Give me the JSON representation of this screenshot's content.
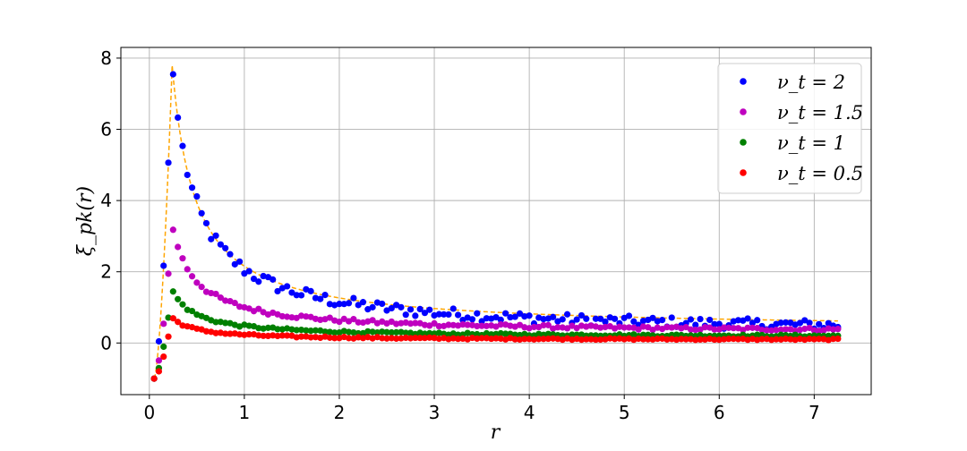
{
  "chart_data": {
    "type": "scatter",
    "title": "",
    "xlabel": "r",
    "ylabel": "ξ_pk(r)",
    "xlim": [
      -0.3,
      7.6
    ],
    "ylim": [
      -1.45,
      8.3
    ],
    "xticks": [
      0,
      1,
      2,
      3,
      4,
      5,
      6,
      7
    ],
    "yticks": [
      0,
      2,
      4,
      6,
      8
    ],
    "grid": true,
    "legend_position": "top-right",
    "fit_line": {
      "style": "dashed",
      "color": "#ffa500",
      "peak_x": 0.24,
      "peak_y": 7.8,
      "end_x": 7.25,
      "end_y": 0.62
    },
    "series": [
      {
        "name": "ν_t = 2",
        "color": "#0000ff",
        "peak_y": 7.85,
        "tail_y": 0.5,
        "noise": 0.22
      },
      {
        "name": "ν_t = 1.5",
        "color": "#bf00bf",
        "peak_y": 3.3,
        "tail_y": 0.38,
        "noise": 0.07
      },
      {
        "name": "ν_t = 1",
        "color": "#008000",
        "peak_y": 1.5,
        "tail_y": 0.2,
        "noise": 0.04
      },
      {
        "name": "ν_t = 0.5",
        "color": "#ff0000",
        "peak_y": 0.72,
        "tail_y": 0.1,
        "noise": 0.03
      }
    ],
    "x_range": [
      0.05,
      7.25
    ],
    "x_step": 0.05
  }
}
